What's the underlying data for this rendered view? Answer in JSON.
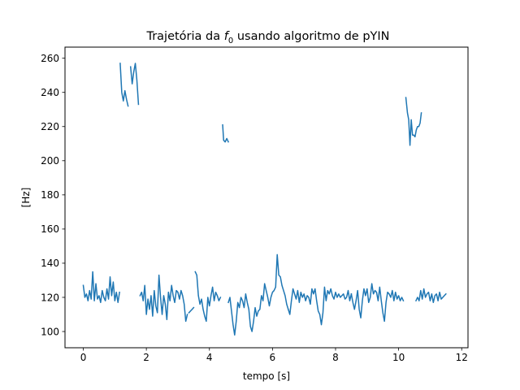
{
  "chart_data": {
    "type": "line",
    "title_prefix": "Trajetória da ",
    "title_symbol": "f",
    "title_subscript": "0",
    "title_suffix": " usando algoritmo de pYIN",
    "xlabel": "tempo [s]",
    "ylabel": "[Hz]",
    "xlim": [
      -0.58,
      12.2
    ],
    "ylim": [
      90.5,
      266.5
    ],
    "xticks": [
      0,
      2,
      4,
      6,
      8,
      10,
      12
    ],
    "yticks": [
      100,
      120,
      140,
      160,
      180,
      200,
      220,
      240,
      260
    ],
    "grid": false,
    "color": "#1f77b4",
    "segments": [
      {
        "x": [
          0.0,
          0.05,
          0.1,
          0.15,
          0.2,
          0.25,
          0.3,
          0.35,
          0.4,
          0.45,
          0.5,
          0.55,
          0.6,
          0.65,
          0.7,
          0.75,
          0.8,
          0.85,
          0.9,
          0.95,
          1.0,
          1.05,
          1.1,
          1.15
        ],
        "y": [
          127,
          120,
          122,
          118,
          124,
          119,
          135,
          118,
          128,
          119,
          121,
          117,
          124,
          120,
          118,
          125,
          119,
          132,
          121,
          129,
          118,
          123,
          117,
          123
        ]
      },
      {
        "x": [
          1.17,
          1.22,
          1.27,
          1.32,
          1.37,
          1.42
        ],
        "y": [
          257,
          240,
          235,
          241,
          236,
          232
        ]
      },
      {
        "x": [
          1.5,
          1.55,
          1.6,
          1.65,
          1.7,
          1.75
        ],
        "y": [
          255,
          245,
          252,
          257,
          247,
          233
        ]
      },
      {
        "x": [
          1.8,
          1.85,
          1.9,
          1.95,
          2.0,
          2.05,
          2.1,
          2.15,
          2.2,
          2.25,
          2.3,
          2.35,
          2.4,
          2.45,
          2.5,
          2.55,
          2.6,
          2.65,
          2.7,
          2.75,
          2.8,
          2.85,
          2.9,
          2.95,
          3.0,
          3.05,
          3.1,
          3.15,
          3.2,
          3.25,
          3.3
        ],
        "y": [
          121,
          123,
          118,
          127,
          110,
          119,
          113,
          121,
          109,
          124,
          115,
          111,
          133,
          120,
          110,
          121,
          116,
          107,
          123,
          118,
          127,
          121,
          117,
          124,
          123,
          119,
          124,
          121,
          116,
          106,
          110
        ]
      },
      {
        "x": [
          3.35,
          3.4,
          3.45,
          3.5
        ],
        "y": [
          111,
          112,
          113,
          114
        ]
      },
      {
        "x": [
          3.55,
          3.6,
          3.65,
          3.7,
          3.75,
          3.8,
          3.85,
          3.9,
          3.95,
          4.0,
          4.05,
          4.1,
          4.15,
          4.2,
          4.25,
          4.3,
          4.35
        ],
        "y": [
          135,
          133,
          121,
          116,
          119,
          113,
          109,
          106,
          120,
          115,
          121,
          126,
          118,
          123,
          121,
          118,
          120
        ]
      },
      {
        "x": [
          4.42,
          4.45,
          4.5,
          4.55,
          4.6
        ],
        "y": [
          221,
          212,
          211,
          213,
          211
        ]
      },
      {
        "x": [
          4.6,
          4.65,
          4.7,
          4.75,
          4.8,
          4.85,
          4.9,
          4.95,
          5.0,
          5.05,
          5.1,
          5.15,
          5.2,
          5.25,
          5.3,
          5.35,
          5.4,
          5.45,
          5.5,
          5.55,
          5.6,
          5.65,
          5.7,
          5.75,
          5.8,
          5.85,
          5.9,
          5.95,
          6.0,
          6.05,
          6.1,
          6.15,
          6.2,
          6.25,
          6.3,
          6.35,
          6.4,
          6.45,
          6.5
        ],
        "y": [
          117,
          120,
          112,
          104,
          98,
          106,
          117,
          114,
          120,
          118,
          114,
          122,
          117,
          113,
          103,
          100,
          106,
          114,
          109,
          112,
          113,
          121,
          118,
          128,
          124,
          120,
          115,
          120,
          123,
          124,
          126,
          145,
          133,
          132,
          127,
          124,
          121,
          116,
          113
        ]
      },
      {
        "x": [
          6.5,
          6.55,
          6.6,
          6.65,
          6.7,
          6.75,
          6.8,
          6.85,
          6.9,
          6.95,
          7.0,
          7.05,
          7.1,
          7.15,
          7.2,
          7.25,
          7.3,
          7.35,
          7.4,
          7.45,
          7.5,
          7.55,
          7.6,
          7.65,
          7.7,
          7.75,
          7.8,
          7.85,
          7.9,
          7.95,
          8.0,
          8.05,
          8.1,
          8.15,
          8.2,
          8.25,
          8.3,
          8.35,
          8.4,
          8.45,
          8.5
        ],
        "y": [
          113,
          110,
          118,
          125,
          122,
          119,
          124,
          117,
          123,
          120,
          122,
          118,
          121,
          120,
          116,
          125,
          122,
          125,
          118,
          112,
          110,
          104,
          111,
          126,
          118,
          124,
          122,
          125,
          121,
          119,
          123,
          120,
          122,
          120,
          121,
          122,
          119,
          120,
          124,
          118,
          122
        ]
      },
      {
        "x": [
          8.5,
          8.55,
          8.6,
          8.65,
          8.7,
          8.75,
          8.8,
          8.85,
          8.9,
          8.95,
          9.0,
          9.05,
          9.1,
          9.15,
          9.2,
          9.25,
          9.3,
          9.35,
          9.4,
          9.45,
          9.5,
          9.55,
          9.6,
          9.65,
          9.7,
          9.75,
          9.8,
          9.85,
          9.9,
          9.95,
          10.0,
          10.05,
          10.1,
          10.15
        ],
        "y": [
          122,
          117,
          113,
          118,
          124,
          113,
          108,
          118,
          125,
          121,
          125,
          117,
          120,
          128,
          122,
          124,
          123,
          118,
          126,
          118,
          111,
          106,
          117,
          123,
          122,
          120,
          124,
          118,
          123,
          119,
          121,
          118,
          120,
          118
        ]
      },
      {
        "x": [
          10.23,
          10.28,
          10.32,
          10.36,
          10.4,
          10.44,
          10.48,
          10.52,
          10.56,
          10.6,
          10.64,
          10.68,
          10.72
        ],
        "y": [
          237,
          228,
          224,
          209,
          224,
          215,
          215,
          214,
          218,
          220,
          220,
          222,
          228
        ]
      },
      {
        "x": [
          10.55,
          10.6,
          10.65,
          10.7,
          10.75,
          10.8,
          10.85,
          10.9,
          10.95,
          11.0,
          11.05,
          11.1,
          11.15,
          11.2,
          11.25,
          11.3,
          11.35,
          11.4,
          11.45,
          11.5
        ],
        "y": [
          118,
          120,
          118,
          124,
          119,
          125,
          120,
          122,
          123,
          118,
          122,
          117,
          121,
          122,
          118,
          123,
          119,
          120,
          121,
          122
        ]
      }
    ]
  }
}
